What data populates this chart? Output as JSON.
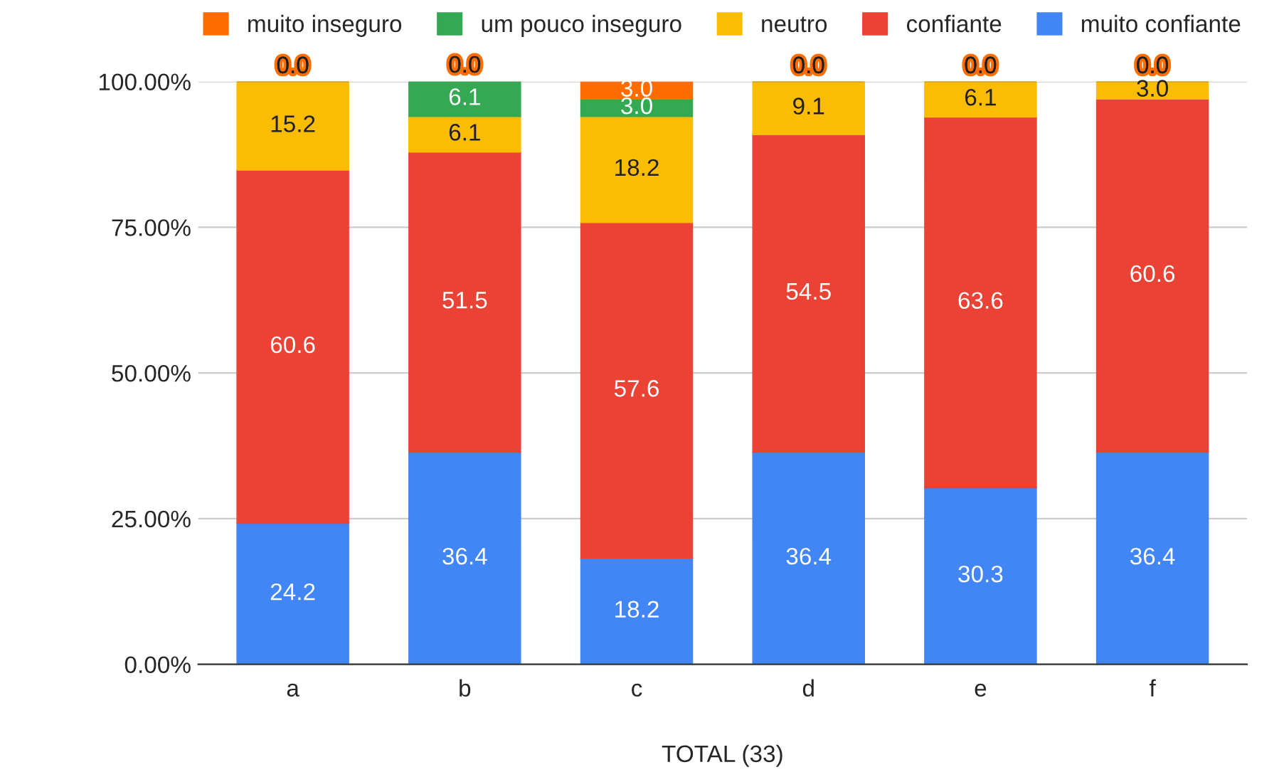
{
  "chart_data": {
    "type": "bar",
    "stacked": true,
    "xlabel": "TOTAL (33)",
    "categories": [
      "a",
      "b",
      "c",
      "d",
      "e",
      "f"
    ],
    "series": [
      {
        "name": "muito confiante",
        "color": "#4285f4",
        "values": [
          24.2,
          36.4,
          18.2,
          36.4,
          30.3,
          36.4
        ],
        "value_labels": [
          "24.2",
          "36.4",
          "18.2",
          "36.4",
          "30.3",
          "36.4"
        ]
      },
      {
        "name": "confiante",
        "color": "#ea4335",
        "values": [
          60.6,
          51.5,
          57.6,
          54.5,
          63.6,
          60.6
        ],
        "value_labels": [
          "60.6",
          "51.5",
          "57.6",
          "54.5",
          "63.6",
          "60.6"
        ]
      },
      {
        "name": "neutro",
        "color": "#fbbc04",
        "values": [
          15.2,
          6.1,
          18.2,
          9.1,
          6.1,
          3.0
        ],
        "value_labels": [
          "15.2",
          "6.1",
          "18.2",
          "9.1",
          "6.1",
          "3.0"
        ]
      },
      {
        "name": "um pouco inseguro",
        "color": "#34a853",
        "values": [
          0.0,
          6.1,
          3.0,
          0.0,
          0.0,
          0.0
        ],
        "value_labels": [
          null,
          "6.1",
          "3.0",
          null,
          null,
          null
        ]
      },
      {
        "name": "muito inseguro",
        "color": "#ff6d01",
        "values": [
          0.0,
          0.0,
          3.0,
          0.0,
          0.0,
          0.0
        ],
        "value_labels": [
          "0.0",
          "0.0",
          "3.0",
          "0.0",
          "0.0",
          "0.0"
        ]
      }
    ],
    "ylim": [
      0,
      100
    ],
    "yticks": [
      {
        "value": 0,
        "label": "0.00%"
      },
      {
        "value": 25,
        "label": "25.00%"
      },
      {
        "value": 50,
        "label": "50.00%"
      },
      {
        "value": 75,
        "label": "75.00%"
      },
      {
        "value": 100,
        "label": "100.00%"
      }
    ],
    "grid": "y",
    "legend": "top"
  }
}
